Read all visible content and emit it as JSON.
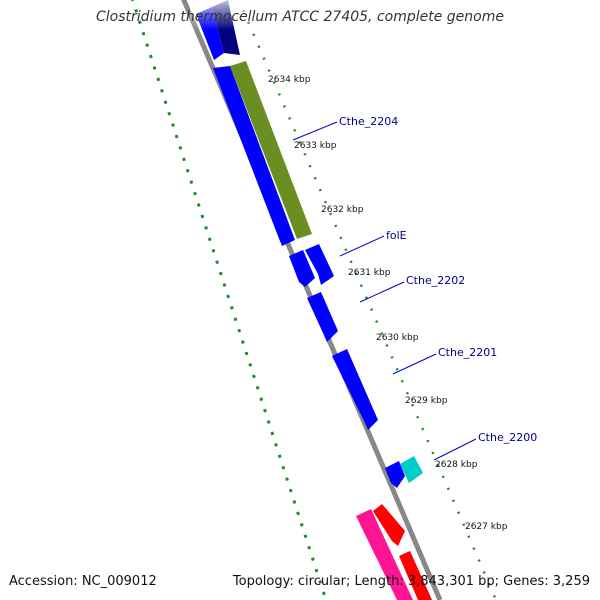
{
  "title": "Clostridium thermocellum ATCC 27405, complete genome",
  "footer": {
    "accession": "Accession: NC_009012",
    "summary": "Topology: circular; Length: 3,843,301 bp; Genes: 3,259"
  },
  "colors": {
    "backbone": "#888888",
    "tick_dots": "#228b22",
    "label_text": "#00008b",
    "cds_blue": "#0000ff",
    "cds_navy": "#000080",
    "olive": "#6b8e23",
    "cyan": "#00cccc",
    "magenta": "#ff1493",
    "red": "#ff0000"
  },
  "diagram": {
    "kbp_ticks": [
      {
        "label": "2634 kbp",
        "pos": 2634
      },
      {
        "label": "2633 kbp",
        "pos": 2633
      },
      {
        "label": "2632 kbp",
        "pos": 2632
      },
      {
        "label": "2631 kbp",
        "pos": 2631
      },
      {
        "label": "2630 kbp",
        "pos": 2630
      },
      {
        "label": "2629 kbp",
        "pos": 2629
      },
      {
        "label": "2628 kbp",
        "pos": 2628
      },
      {
        "label": "2627 kbp",
        "pos": 2627
      }
    ],
    "gene_labels": [
      "Cthe_2204",
      "folE",
      "Cthe_2202",
      "Cthe_2201",
      "Cthe_2200"
    ],
    "features": [
      {
        "name": "navy-cds",
        "color": "navy"
      },
      {
        "name": "blue-cds-top",
        "color": "blue"
      },
      {
        "name": "olive-cds",
        "color": "olive"
      },
      {
        "name": "blue-cds-long",
        "color": "blue"
      },
      {
        "name": "blue-cds-folE",
        "color": "blue"
      },
      {
        "name": "blue-cds-2202-a",
        "color": "blue"
      },
      {
        "name": "blue-cds-2202-b",
        "color": "blue"
      },
      {
        "name": "blue-cds-2201",
        "color": "blue"
      },
      {
        "name": "blue-cds-2200",
        "color": "blue"
      },
      {
        "name": "cyan-cds-2200",
        "color": "cyan"
      },
      {
        "name": "magenta-cds",
        "color": "magenta"
      },
      {
        "name": "red-cds-a",
        "color": "red"
      },
      {
        "name": "red-cds-b",
        "color": "red"
      }
    ]
  }
}
